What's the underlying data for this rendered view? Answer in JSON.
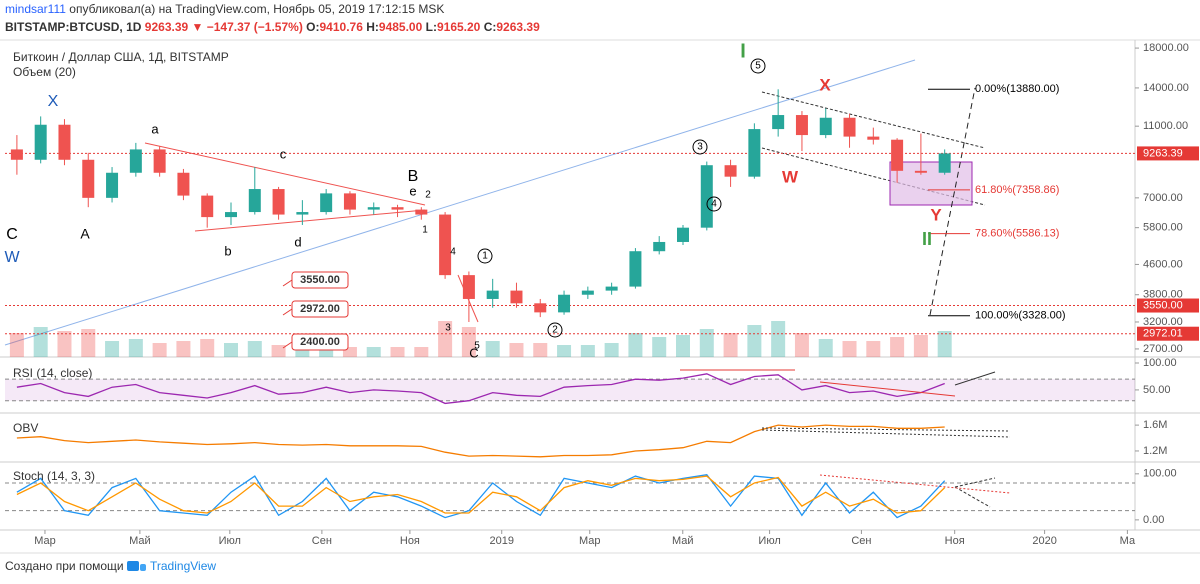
{
  "header": {
    "publisher": "mindsar111",
    "published": "опубликовал(а) на TradingView.com, Ноябрь 05, 2019 17:12:15 MSK",
    "symbol": "BITSTAMP:BTCUSD, 1D",
    "price": "9263.39",
    "change": "▼ −147.37 (−1.57%)",
    "ohlc": [
      {
        "key": "O:",
        "value": "9410.76"
      },
      {
        "key": "H:",
        "value": "9485.00"
      },
      {
        "key": "L:",
        "value": "9165.20"
      },
      {
        "key": "C:",
        "value": "9263.39"
      }
    ]
  },
  "chart_data": {
    "type": "candlestick",
    "title": "Биткоин / Доллар США, 1Д, BITSTAMP",
    "volume_label": "Объем (20)",
    "categories": [
      null,
      null,
      null,
      null,
      null,
      null,
      null,
      null,
      null,
      null,
      null,
      null,
      null,
      null,
      null,
      null,
      null,
      null,
      null,
      null,
      null,
      null,
      null,
      null,
      null,
      null,
      null,
      null,
      null,
      null,
      null,
      null,
      null,
      null,
      null,
      null,
      null,
      null,
      null,
      null
    ],
    "open": [
      9500,
      8900,
      11100,
      8900,
      7000,
      8200,
      9500,
      8200,
      7100,
      6200,
      6400,
      7400,
      6300,
      6400,
      7200,
      6500,
      6600,
      6500,
      6300,
      4300,
      3700,
      3900,
      3600,
      3400,
      3800,
      3900,
      4000,
      5000,
      5300,
      5800,
      8600,
      8000,
      10800,
      11800,
      10400,
      11600,
      10300,
      10100,
      8300,
      8200
    ],
    "high": [
      10400,
      11700,
      11500,
      9300,
      8500,
      9900,
      9700,
      8400,
      7200,
      6800,
      8500,
      7500,
      6900,
      7400,
      7300,
      6800,
      6700,
      6600,
      6400,
      4400,
      4200,
      4100,
      3700,
      3900,
      4000,
      4100,
      5100,
      5500,
      5900,
      8800,
      8900,
      11200,
      13880,
      12100,
      12300,
      11900,
      10900,
      10200,
      10500,
      9500
    ],
    "low": [
      8100,
      8700,
      8600,
      6600,
      6800,
      8000,
      8000,
      6900,
      5800,
      5900,
      6300,
      6100,
      5900,
      6300,
      6300,
      6300,
      6200,
      6100,
      4200,
      3200,
      3500,
      3500,
      3300,
      3350,
      3700,
      3800,
      3950,
      4900,
      5200,
      5700,
      7500,
      7900,
      10300,
      9400,
      10200,
      9600,
      9800,
      7700,
      8100,
      8100
    ],
    "close": [
      8900,
      11100,
      8900,
      7000,
      8200,
      9500,
      8200,
      7100,
      6200,
      6400,
      7400,
      6300,
      6400,
      7200,
      6500,
      6600,
      6500,
      6300,
      4300,
      3700,
      3900,
      3600,
      3400,
      3800,
      3900,
      4000,
      5000,
      5300,
      5800,
      8600,
      8000,
      10800,
      11800,
      10400,
      11600,
      10300,
      10100,
      8300,
      8200,
      9263.39
    ],
    "volume": [
      12,
      15,
      13,
      14,
      8,
      9,
      7,
      8,
      9,
      7,
      8,
      6,
      6,
      7,
      5,
      5,
      5,
      5,
      18,
      15,
      8,
      7,
      7,
      6,
      6,
      7,
      12,
      10,
      11,
      14,
      12,
      16,
      18,
      12,
      9,
      8,
      8,
      10,
      11,
      13
    ],
    "volume_lim": [
      0,
      60
    ],
    "up_color": "#26a69a",
    "down_color": "#ef5350",
    "log_scale": true,
    "ylim": [
      2566,
      18940
    ],
    "yticks": [
      {
        "value": 2700,
        "label": "2700.00"
      },
      {
        "value": 3200,
        "label": "3200.00"
      },
      {
        "value": 3800,
        "label": "3800.00"
      },
      {
        "value": 4600,
        "label": "4600.00"
      },
      {
        "value": 5800,
        "label": "5800.00"
      },
      {
        "value": 7000,
        "label": "7000.00"
      },
      {
        "value": 11000,
        "label": "11000.00"
      },
      {
        "value": 14000,
        "label": "14000.00"
      },
      {
        "value": 18000,
        "label": "18000.00"
      }
    ],
    "xlim": [
      0,
      47.5
    ],
    "xticks": [
      {
        "value": 1.68,
        "label": "Мар"
      },
      {
        "value": 5.67,
        "label": "Май"
      },
      {
        "value": 9.45,
        "label": "Июл"
      },
      {
        "value": 13.32,
        "label": "Сен"
      },
      {
        "value": 17.02,
        "label": "Ноя"
      },
      {
        "value": 20.88,
        "label": "2019"
      },
      {
        "value": 24.58,
        "label": "Мар"
      },
      {
        "value": 28.49,
        "label": "Май"
      },
      {
        "value": 32.14,
        "label": "Июл"
      },
      {
        "value": 36.0,
        "label": "Сен"
      },
      {
        "value": 39.92,
        "label": "Ноя"
      },
      {
        "value": 43.7,
        "label": "2020"
      },
      {
        "value": 47.18,
        "label": "Ма"
      }
    ],
    "price_lines": [
      {
        "value": 3550,
        "label": "3550.00"
      },
      {
        "value": 2972.01,
        "label": "2972.01"
      }
    ],
    "fib_levels": [
      {
        "value": 13880,
        "label": "0.00%(13880.00)",
        "color": "#000000"
      },
      {
        "value": 7358.86,
        "label": "61.80%(7358.86)",
        "color": "#e53935"
      },
      {
        "value": 5586.13,
        "label": "78.60%(5586.13)",
        "color": "#e53935"
      },
      {
        "value": 3328,
        "label": "100.00%(3328.00)",
        "color": "#000000"
      }
    ],
    "wave_labels": [
      "X",
      "W",
      "C",
      "A",
      "a",
      "b",
      "c",
      "d",
      "B",
      "e",
      "2",
      "1",
      "4",
      "3",
      "5",
      "C",
      "I",
      "5",
      "X",
      "3",
      "4",
      "W",
      "1",
      "2",
      "Y",
      "II"
    ],
    "callouts": [
      "3550.00",
      "2972.00",
      "2400.00"
    ],
    "indicators": [
      {
        "title": "RSI (14, close)",
        "series": [
          {
            "color": "#9c27b0",
            "values": [
              55,
              62,
              45,
              38,
              55,
              60,
              45,
              40,
              35,
              45,
              58,
              42,
              45,
              55,
              45,
              50,
              48,
              45,
              25,
              30,
              45,
              40,
              38,
              55,
              58,
              60,
              70,
              68,
              72,
              80,
              60,
              75,
              78,
              50,
              58,
              45,
              48,
              38,
              45,
              62
            ]
          }
        ],
        "ylim": [
          9,
          100
        ],
        "yticks": [
          {
            "value": 100,
            "label": "100.00"
          },
          {
            "value": 50,
            "label": "50.00"
          }
        ],
        "bands": [
          30,
          70
        ]
      },
      {
        "title": "OBV",
        "series": [
          {
            "color": "#f57c00",
            "values": [
              1.4,
              1.42,
              1.36,
              1.33,
              1.35,
              1.37,
              1.34,
              1.32,
              1.3,
              1.31,
              1.33,
              1.3,
              1.29,
              1.3,
              1.28,
              1.28,
              1.28,
              1.27,
              1.18,
              1.12,
              1.13,
              1.12,
              1.11,
              1.13,
              1.13,
              1.14,
              1.2,
              1.22,
              1.25,
              1.35,
              1.33,
              1.5,
              1.6,
              1.57,
              1.6,
              1.58,
              1.58,
              1.55,
              1.55,
              1.57
            ]
          }
        ],
        "ylim": [
          1.06,
          1.71
        ],
        "yticks": [
          {
            "value": 1.6,
            "label": "1.6M"
          },
          {
            "value": 1.2,
            "label": "1.2M"
          }
        ]
      },
      {
        "title": "Stoch (14, 3, 3)",
        "series": [
          {
            "color": "#2196f3",
            "values": [
              60,
              90,
              20,
              10,
              70,
              90,
              20,
              15,
              10,
              60,
              95,
              10,
              40,
              90,
              20,
              60,
              50,
              30,
              5,
              20,
              80,
              40,
              10,
              90,
              80,
              70,
              95,
              80,
              90,
              98,
              30,
              95,
              90,
              10,
              80,
              15,
              60,
              5,
              30,
              85
            ]
          },
          {
            "color": "#ff9800",
            "values": [
              55,
              80,
              40,
              20,
              50,
              80,
              45,
              20,
              15,
              40,
              80,
              30,
              30,
              70,
              40,
              50,
              55,
              40,
              15,
              15,
              60,
              50,
              20,
              70,
              85,
              75,
              90,
              85,
              88,
              95,
              50,
              80,
              92,
              30,
              60,
              30,
              45,
              15,
              20,
              70
            ]
          }
        ],
        "ylim": [
          -22,
          117
        ],
        "yticks": [
          {
            "value": 100,
            "label": "100.00"
          },
          {
            "value": 0,
            "label": "0.00"
          }
        ],
        "bands": [
          20,
          80
        ]
      }
    ]
  },
  "footer": {
    "text": "Создано при помощи",
    "brand": "TradingView"
  }
}
